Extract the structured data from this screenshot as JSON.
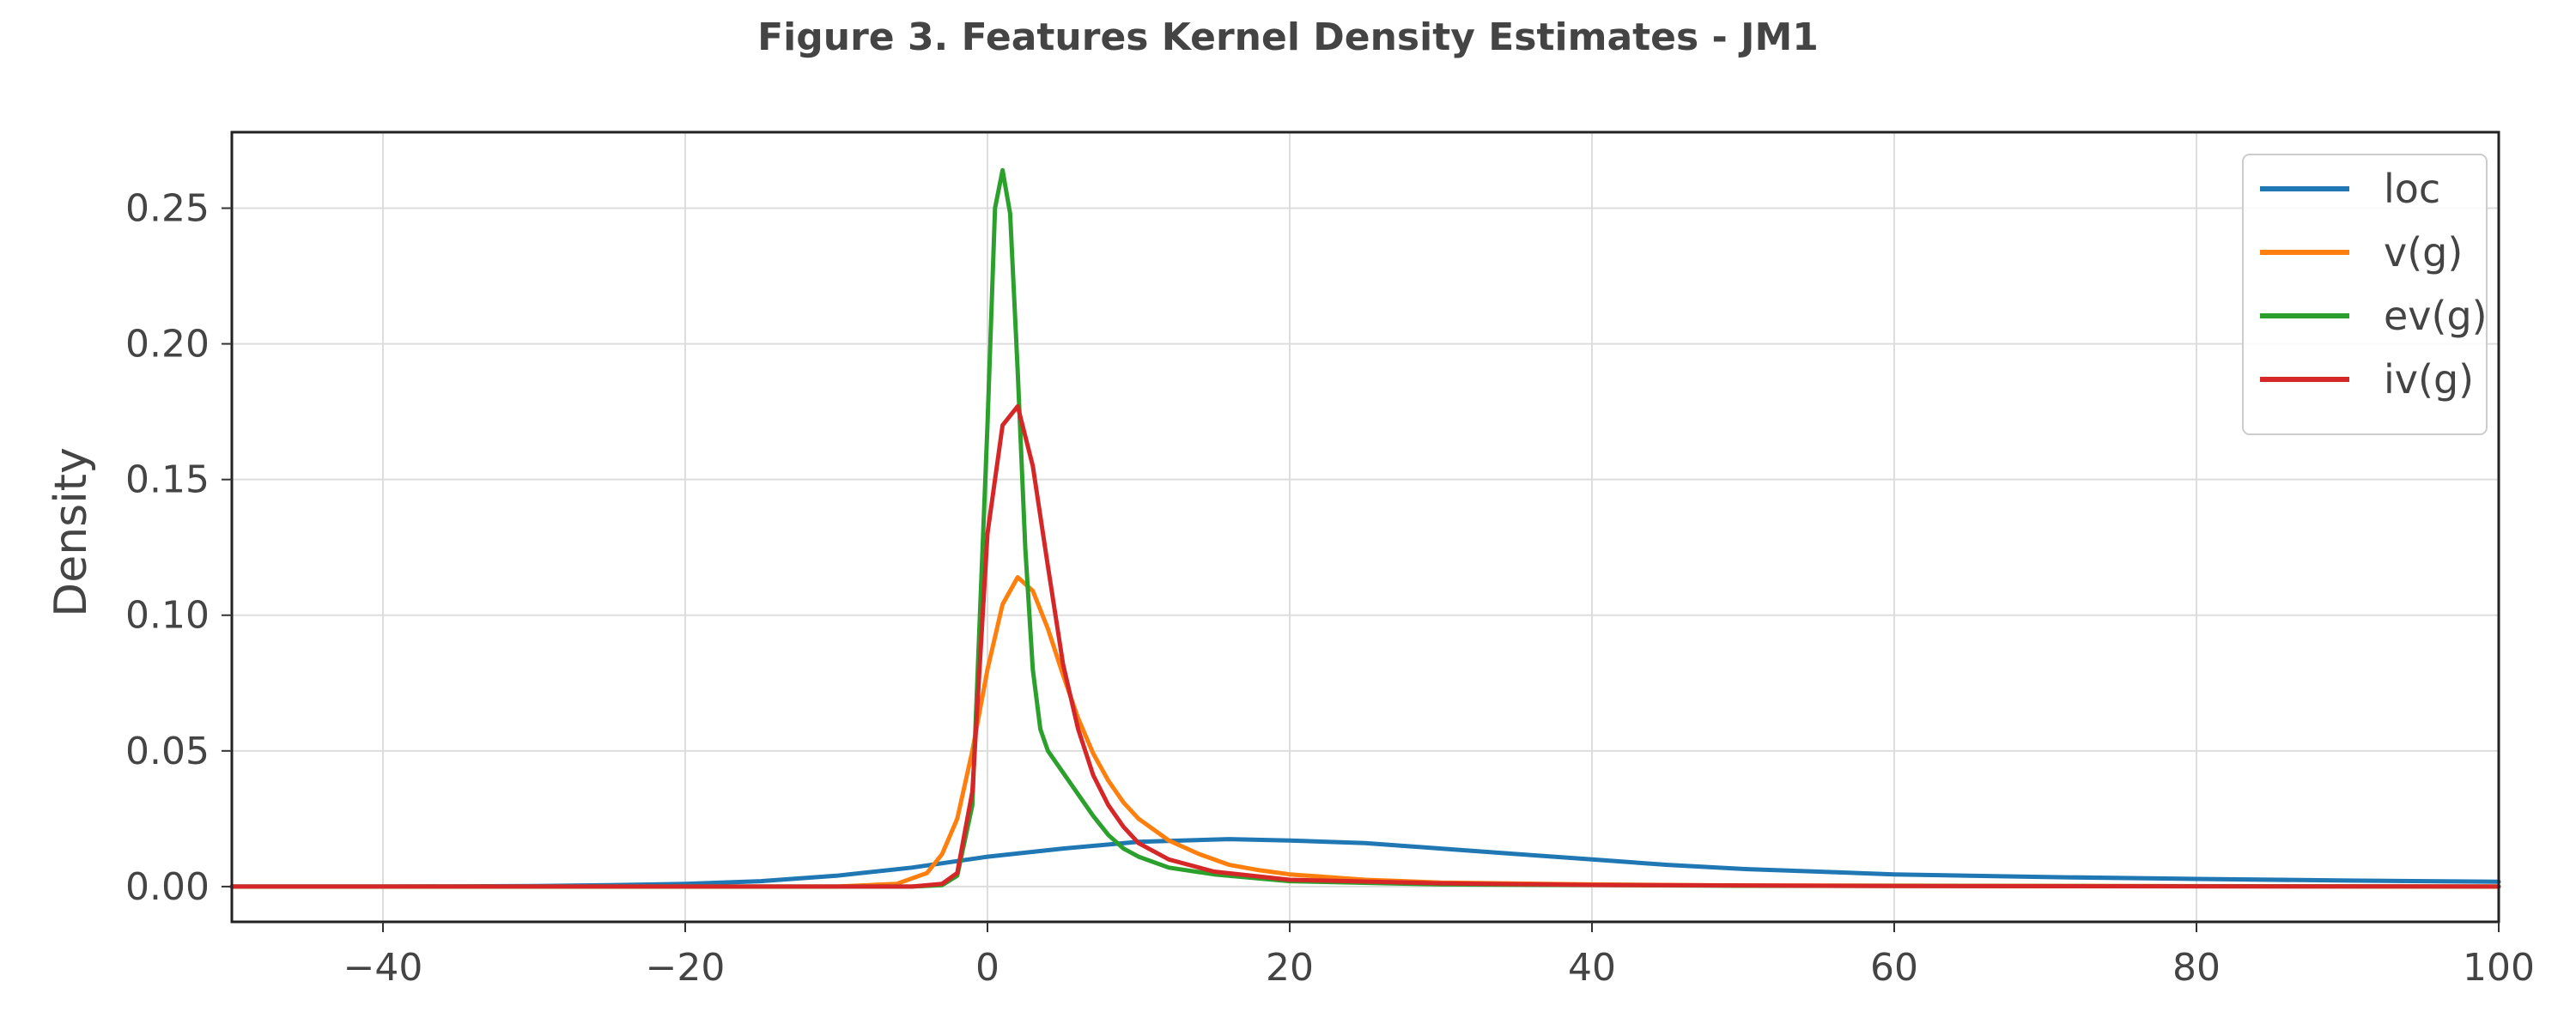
{
  "chart_data": {
    "type": "line",
    "title": "Figure 3. Features Kernel Density Estimates - JM1",
    "xlabel": "",
    "ylabel": "Density",
    "xlim": [
      -50,
      100
    ],
    "ylim": [
      -0.013,
      0.278
    ],
    "xticks": [
      -40,
      -20,
      0,
      20,
      40,
      60,
      80,
      100
    ],
    "xtick_labels": [
      "−40",
      "−20",
      "0",
      "20",
      "40",
      "60",
      "80",
      "100"
    ],
    "yticks": [
      0.0,
      0.05,
      0.1,
      0.15,
      0.2,
      0.25
    ],
    "ytick_labels": [
      "0.00",
      "0.05",
      "0.10",
      "0.15",
      "0.20",
      "0.25"
    ],
    "grid": true,
    "legend_position": "top-right",
    "series": [
      {
        "name": "loc",
        "color": "#1f77b4",
        "x": [
          -50,
          -40,
          -30,
          -25,
          -20,
          -15,
          -10,
          -5,
          0,
          5,
          10,
          16,
          20,
          25,
          30,
          35,
          40,
          45,
          50,
          55,
          60,
          70,
          80,
          90,
          100
        ],
        "y": [
          0.0,
          0.0,
          0.0002,
          0.0005,
          0.001,
          0.002,
          0.004,
          0.007,
          0.011,
          0.014,
          0.0165,
          0.0175,
          0.017,
          0.016,
          0.014,
          0.012,
          0.01,
          0.008,
          0.0065,
          0.0055,
          0.0045,
          0.0035,
          0.0028,
          0.0022,
          0.0018
        ]
      },
      {
        "name": "v(g)",
        "color": "#ff7f0e",
        "x": [
          -50,
          -10,
          -6,
          -4,
          -3,
          -2,
          -1,
          0,
          1,
          2,
          3,
          4,
          5,
          6,
          7,
          8,
          9,
          10,
          12,
          14,
          16,
          18,
          20,
          25,
          30,
          40,
          50,
          100
        ],
        "y": [
          0.0,
          0.0,
          0.001,
          0.005,
          0.012,
          0.025,
          0.05,
          0.08,
          0.104,
          0.114,
          0.109,
          0.095,
          0.078,
          0.062,
          0.049,
          0.039,
          0.031,
          0.025,
          0.017,
          0.012,
          0.008,
          0.006,
          0.0045,
          0.0025,
          0.0015,
          0.0008,
          0.0004,
          0.0
        ]
      },
      {
        "name": "ev(g)",
        "color": "#2ca02c",
        "x": [
          -50,
          -5,
          -3,
          -2,
          -1,
          0,
          0.5,
          1,
          1.5,
          2,
          2.5,
          3,
          3.5,
          4,
          5,
          6,
          7,
          8,
          9,
          10,
          12,
          15,
          20,
          30,
          50,
          100
        ],
        "y": [
          0.0,
          0.0,
          0.0005,
          0.004,
          0.03,
          0.17,
          0.25,
          0.264,
          0.248,
          0.19,
          0.125,
          0.08,
          0.058,
          0.05,
          0.042,
          0.034,
          0.026,
          0.019,
          0.014,
          0.011,
          0.007,
          0.0045,
          0.002,
          0.0008,
          0.0003,
          0.0
        ]
      },
      {
        "name": "iv(g)",
        "color": "#d62728",
        "x": [
          -50,
          -5,
          -3,
          -2,
          -1,
          0,
          1,
          2,
          3,
          4,
          5,
          6,
          7,
          8,
          9,
          10,
          12,
          15,
          20,
          30,
          40,
          60,
          100
        ],
        "y": [
          0.0,
          0.0,
          0.001,
          0.005,
          0.035,
          0.13,
          0.17,
          0.177,
          0.155,
          0.118,
          0.082,
          0.058,
          0.041,
          0.03,
          0.022,
          0.016,
          0.01,
          0.0055,
          0.0025,
          0.0012,
          0.0006,
          0.0002,
          0.0
        ]
      }
    ]
  }
}
